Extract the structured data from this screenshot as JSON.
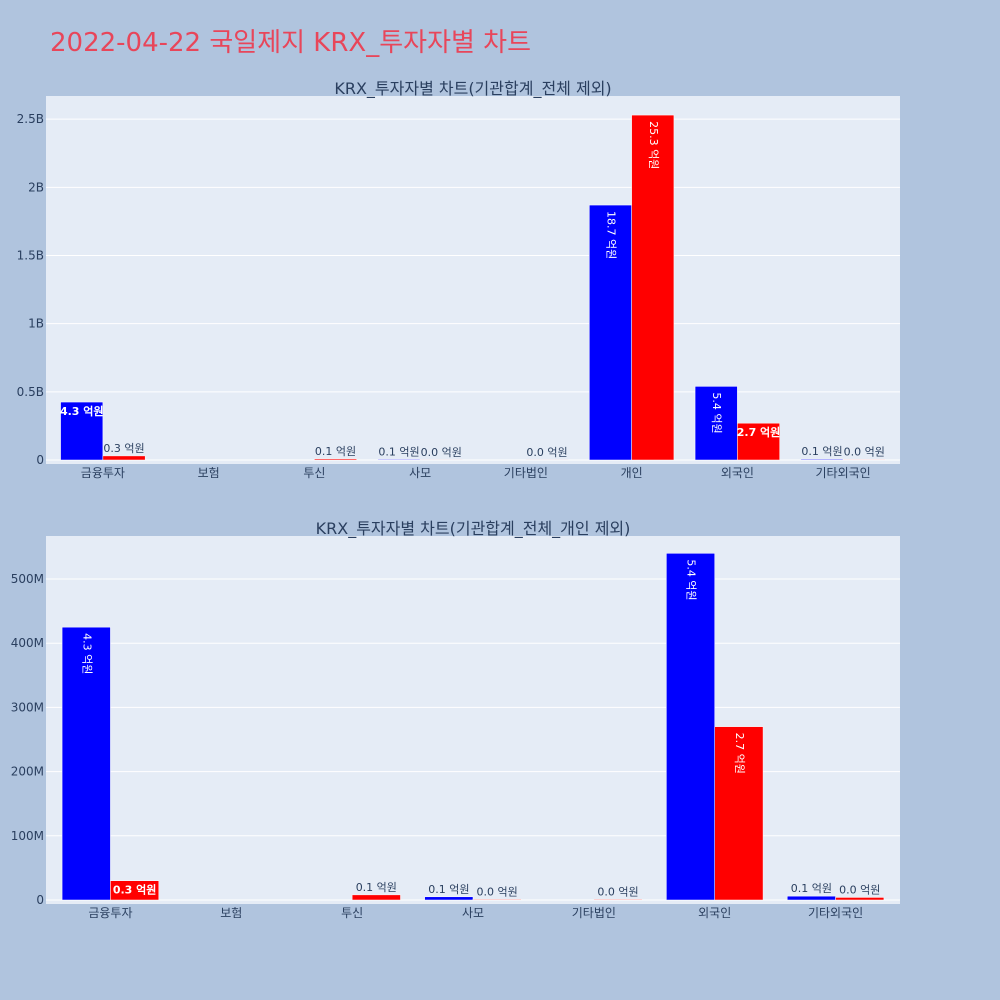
{
  "page_title": "2022-04-22 국일제지 KRX_투자자별 차트",
  "colors": {
    "buy": "#0000ff",
    "sell": "#ff0000",
    "plot_bg": "#e5ecf6",
    "paper_bg": "#b0c4de",
    "title": "#e8465a",
    "text": "#2a3f5f"
  },
  "chart_data": [
    {
      "type": "bar",
      "title": "KRX_투자자별 차트(기관합계_전체 제외)",
      "categories": [
        "금융투자",
        "보험",
        "투신",
        "사모",
        "기타법인",
        "개인",
        "외국인",
        "기타외국인"
      ],
      "series": [
        {
          "values": [
            425000000,
            0,
            0,
            5000000,
            0,
            1870000000,
            540000000,
            6000000
          ],
          "labels": [
            "4.3 억원",
            "",
            "",
            "0.1 억원",
            "",
            "18.7 억원",
            "5.4 억원",
            "0.1 억원"
          ]
        },
        {
          "values": [
            30000000,
            0,
            8000000,
            1000000,
            1000000,
            2530000000,
            270000000,
            4000000
          ],
          "labels": [
            "0.3 억원",
            "",
            "0.1 억원",
            "0.0 억원",
            "0.0 억원",
            "25.3 억원",
            "2.7 억원",
            "0.0 억원"
          ]
        }
      ],
      "yticks": [
        0,
        500000000,
        1000000000,
        1500000000,
        2000000000,
        2500000000
      ],
      "ytick_labels": [
        "0",
        "0.5B",
        "1B",
        "1.5B",
        "2B",
        "2.5B"
      ],
      "ylim": [
        0,
        2670000000
      ],
      "grid": true
    },
    {
      "type": "bar",
      "title": "KRX_투자자별 차트(기관합계_전체_개인 제외)",
      "categories": [
        "금융투자",
        "보험",
        "투신",
        "사모",
        "기타법인",
        "외국인",
        "기타외국인"
      ],
      "series": [
        {
          "values": [
            425000000,
            0,
            0,
            5000000,
            0,
            540000000,
            6000000
          ],
          "labels": [
            "4.3 억원",
            "",
            "",
            "0.1 억원",
            "",
            "5.4 억원",
            "0.1 억원"
          ]
        },
        {
          "values": [
            30000000,
            0,
            8000000,
            1000000,
            1000000,
            270000000,
            4000000
          ],
          "labels": [
            "0.3 억원",
            "",
            "0.1 억원",
            "0.0 억원",
            "0.0 억원",
            "2.7 억원",
            "0.0 억원"
          ]
        }
      ],
      "yticks": [
        0,
        100000000,
        200000000,
        300000000,
        400000000,
        500000000
      ],
      "ytick_labels": [
        "0",
        "100M",
        "200M",
        "300M",
        "400M",
        "500M"
      ],
      "ylim": [
        0,
        567000000
      ],
      "grid": true
    }
  ]
}
